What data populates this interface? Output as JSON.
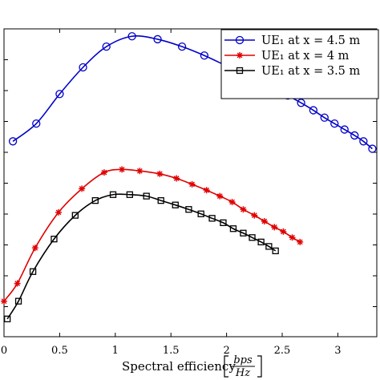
{
  "chart_data": {
    "type": "line",
    "xlabel": "Spectral efficiency",
    "xlabel_unit_num": "bps",
    "xlabel_unit_den": "Hz",
    "xlim": [
      0,
      3.35
    ],
    "x_ticks": [
      0,
      0.5,
      1,
      1.5,
      2,
      2.5,
      3
    ],
    "x_tick_labels": [
      "0",
      "0.5",
      "1",
      "1.5",
      "2",
      "2.5",
      "3"
    ],
    "ylabel": "",
    "grid": false,
    "legend_position": "top-right",
    "series": [
      {
        "name": "UE1 at x = 4.5 m",
        "legend_label": "UE₁ at x = 4.5 m",
        "color": "#0000c8",
        "marker": "circle",
        "x": [
          0.08,
          0.29,
          0.5,
          0.71,
          0.92,
          1.15,
          1.38,
          1.6,
          1.8,
          2.0,
          2.15,
          2.3,
          2.43,
          2.55,
          2.67,
          2.78,
          2.88,
          2.97,
          3.06,
          3.15,
          3.23,
          3.31
        ],
        "y": [
          0.72,
          0.78,
          0.88,
          0.97,
          1.04,
          1.075,
          1.065,
          1.04,
          1.01,
          0.975,
          0.95,
          0.925,
          0.9,
          0.875,
          0.85,
          0.825,
          0.8,
          0.78,
          0.76,
          0.74,
          0.72,
          0.695
        ]
      },
      {
        "name": "UE1 at x = 4 m",
        "legend_label": "UE₁ at x = 4 m",
        "color": "#e00000",
        "marker": "star",
        "x": [
          0.0,
          0.12,
          0.28,
          0.49,
          0.7,
          0.9,
          1.06,
          1.22,
          1.4,
          1.55,
          1.69,
          1.82,
          1.94,
          2.05,
          2.15,
          2.25,
          2.34,
          2.43,
          2.51,
          2.59,
          2.66
        ],
        "y": [
          0.18,
          0.24,
          0.36,
          0.48,
          0.56,
          0.615,
          0.625,
          0.62,
          0.61,
          0.595,
          0.575,
          0.555,
          0.535,
          0.515,
          0.49,
          0.47,
          0.45,
          0.43,
          0.415,
          0.395,
          0.38
        ]
      },
      {
        "name": "UE1 at x = 3.5 m",
        "legend_label": "UE₁ at x = 3.5 m",
        "color": "#000000",
        "marker": "square",
        "x": [
          0.03,
          0.13,
          0.26,
          0.45,
          0.64,
          0.82,
          0.98,
          1.13,
          1.28,
          1.41,
          1.54,
          1.66,
          1.77,
          1.87,
          1.97,
          2.06,
          2.15,
          2.23,
          2.31,
          2.38,
          2.44
        ],
        "y": [
          0.12,
          0.18,
          0.28,
          0.39,
          0.47,
          0.52,
          0.54,
          0.54,
          0.535,
          0.52,
          0.505,
          0.49,
          0.475,
          0.46,
          0.445,
          0.425,
          0.41,
          0.395,
          0.38,
          0.365,
          0.35
        ]
      }
    ]
  }
}
